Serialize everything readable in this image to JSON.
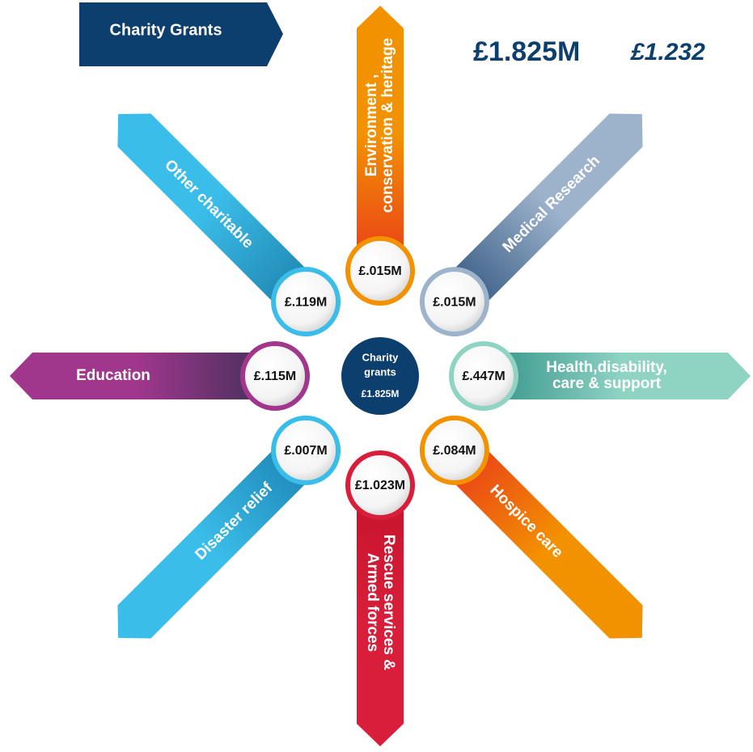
{
  "header": {
    "badge": "Charity Grants",
    "total": "£1.825M",
    "prior": "£1.232"
  },
  "center": {
    "lines": [
      "Charity",
      "grants"
    ],
    "amount": "£1.825M"
  },
  "spokes": [
    {
      "lines": [
        "Environment ,",
        "conservation & heritage"
      ],
      "amount": "£.015M"
    },
    {
      "lines": [
        "Medical Research"
      ],
      "amount": "£.015M"
    },
    {
      "lines": [
        "Health,disability,",
        "care & support"
      ],
      "amount": "£.447M"
    },
    {
      "lines": [
        "Hospice care"
      ],
      "amount": "£.084M"
    },
    {
      "lines": [
        "Rescue services &",
        "Armed forces"
      ],
      "amount": "£1.023M"
    },
    {
      "lines": [
        "Disaster relief"
      ],
      "amount": "£.007M"
    },
    {
      "lines": [
        "Education"
      ],
      "amount": "£.115M"
    },
    {
      "lines": [
        "Other charitable"
      ],
      "amount": "£.119M"
    }
  ]
}
